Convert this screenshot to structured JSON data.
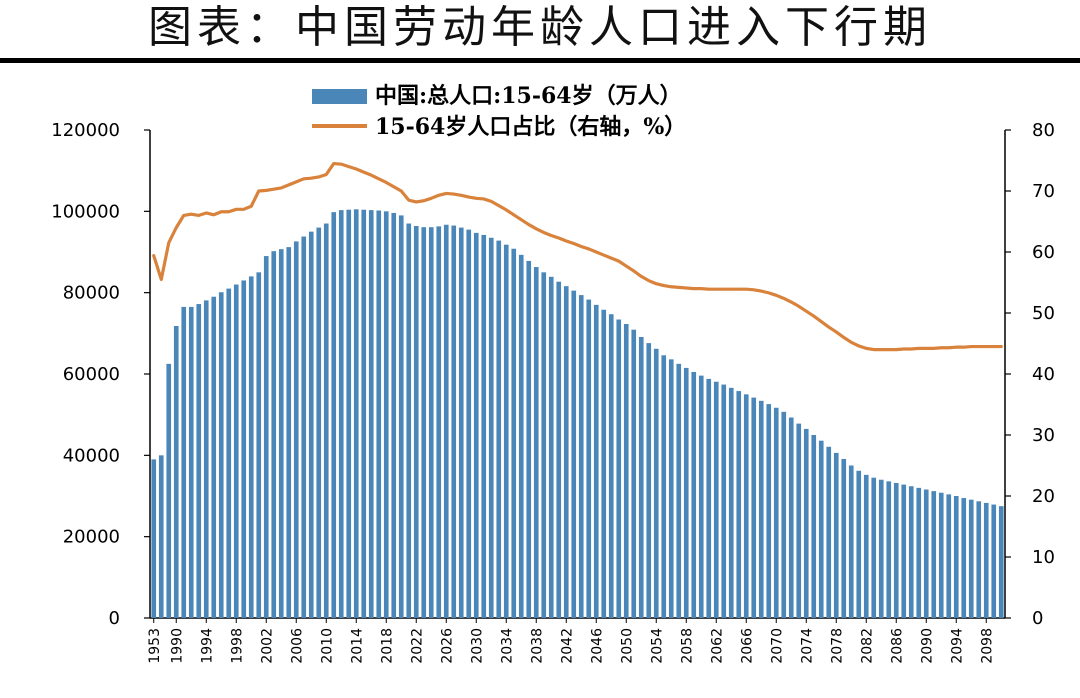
{
  "title": "图表：中国劳动年龄人口进入下行期",
  "chart_data": {
    "type": "bar+line",
    "legend": {
      "bar_label": "中国:总人口:15-64岁（万人）",
      "line_label": "15-64岁人口占比（右轴，%）"
    },
    "y_left": {
      "ticks": [
        "0",
        "20000",
        "40000",
        "60000",
        "80000",
        "100000",
        "120000"
      ],
      "min": 0,
      "max": 120000
    },
    "y_right": {
      "ticks": [
        "0",
        "10",
        "20",
        "30",
        "40",
        "50",
        "60",
        "70",
        "80"
      ],
      "min": 0,
      "max": 80
    },
    "x_tick_labels": [
      "1953",
      "1990",
      "1994",
      "1998",
      "2002",
      "2006",
      "2010",
      "2014",
      "2018",
      "2022",
      "2026",
      "2030",
      "2034",
      "2038",
      "2042",
      "2046",
      "2050",
      "2054",
      "2058",
      "2062",
      "2066",
      "2070",
      "2074",
      "2078",
      "2082",
      "2086",
      "2090",
      "2094",
      "2098"
    ],
    "bar_color": "#4a86b8",
    "line_color": "#d9823b",
    "years": [
      1953,
      1964,
      1982,
      1990,
      1991,
      1992,
      1993,
      1994,
      1995,
      1996,
      1997,
      1998,
      1999,
      2000,
      2001,
      2002,
      2003,
      2004,
      2005,
      2006,
      2007,
      2008,
      2009,
      2010,
      2011,
      2012,
      2013,
      2014,
      2015,
      2016,
      2017,
      2018,
      2019,
      2020,
      2021,
      2022,
      2023,
      2024,
      2025,
      2026,
      2027,
      2028,
      2029,
      2030,
      2031,
      2032,
      2033,
      2034,
      2035,
      2036,
      2037,
      2038,
      2039,
      2040,
      2041,
      2042,
      2043,
      2044,
      2045,
      2046,
      2047,
      2048,
      2049,
      2050,
      2051,
      2052,
      2053,
      2054,
      2055,
      2056,
      2057,
      2058,
      2059,
      2060,
      2061,
      2062,
      2063,
      2064,
      2065,
      2066,
      2067,
      2068,
      2069,
      2070,
      2071,
      2072,
      2073,
      2074,
      2075,
      2076,
      2077,
      2078,
      2079,
      2080,
      2081,
      2082,
      2083,
      2084,
      2085,
      2086,
      2087,
      2088,
      2089,
      2090,
      2091,
      2092,
      2093,
      2094,
      2095,
      2096,
      2097,
      2098,
      2099,
      2100
    ],
    "working_age_population": [
      39000,
      40000,
      62500,
      71800,
      76500,
      76500,
      77200,
      78100,
      79000,
      80100,
      81000,
      82000,
      83000,
      84000,
      85000,
      89000,
      90200,
      90700,
      91200,
      92600,
      93800,
      95000,
      96000,
      97000,
      99800,
      100300,
      100400,
      100500,
      100400,
      100300,
      100200,
      100000,
      99600,
      99000,
      97000,
      96400,
      96100,
      96100,
      96300,
      96700,
      96500,
      96000,
      95500,
      94700,
      94200,
      93500,
      92800,
      91800,
      90800,
      89300,
      87800,
      86300,
      85000,
      83900,
      82700,
      81600,
      80500,
      79400,
      78300,
      77000,
      75800,
      74700,
      73400,
      72300,
      70900,
      69100,
      67600,
      66200,
      64600,
      63600,
      62500,
      61500,
      60500,
      59600,
      58800,
      58100,
      57400,
      56600,
      55800,
      55000,
      54200,
      53400,
      52600,
      51700,
      50700,
      49300,
      47800,
      46500,
      45000,
      43600,
      42100,
      40600,
      39100,
      37500,
      36200,
      35200,
      34500,
      34000,
      33600,
      33200,
      32800,
      32400,
      32000,
      31600,
      31200,
      30800,
      30400,
      30000,
      29500,
      29100,
      28700,
      28300,
      27900,
      27500
    ],
    "working_age_share": [
      59.4,
      55.5,
      61.5,
      64.0,
      66.0,
      66.2,
      66.0,
      66.4,
      66.1,
      66.6,
      66.6,
      67.0,
      67.0,
      67.5,
      70.0,
      70.1,
      70.3,
      70.5,
      71.0,
      71.5,
      72.0,
      72.1,
      72.3,
      72.7,
      74.5,
      74.4,
      74.0,
      73.6,
      73.1,
      72.6,
      72.0,
      71.4,
      70.7,
      70.0,
      68.5,
      68.2,
      68.4,
      68.8,
      69.3,
      69.6,
      69.5,
      69.3,
      69.0,
      68.8,
      68.7,
      68.3,
      67.6,
      66.9,
      66.1,
      65.3,
      64.5,
      63.8,
      63.2,
      62.7,
      62.3,
      61.8,
      61.4,
      60.9,
      60.5,
      60.0,
      59.5,
      59.0,
      58.5,
      57.7,
      56.9,
      56.0,
      55.3,
      54.8,
      54.5,
      54.3,
      54.2,
      54.1,
      54.0,
      54.0,
      53.9,
      53.9,
      53.9,
      53.9,
      53.9,
      53.9,
      53.8,
      53.6,
      53.3,
      52.9,
      52.4,
      51.8,
      51.1,
      50.3,
      49.5,
      48.6,
      47.7,
      46.9,
      46.0,
      45.2,
      44.6,
      44.2,
      44.0,
      44.0,
      44.0,
      44.0,
      44.1,
      44.1,
      44.2,
      44.2,
      44.2,
      44.3,
      44.3,
      44.4,
      44.4,
      44.5,
      44.5,
      44.5,
      44.5,
      44.5
    ]
  }
}
